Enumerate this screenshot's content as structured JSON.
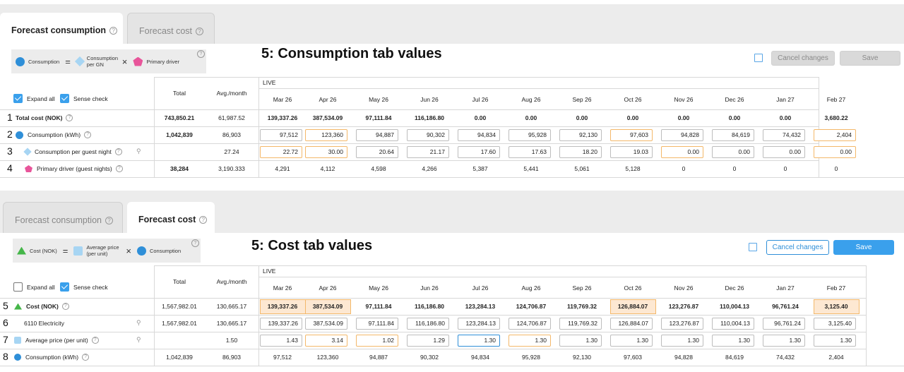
{
  "months": [
    "Mar 26",
    "Apr 26",
    "May 26",
    "Jun 26",
    "Jul 26",
    "Aug 26",
    "Sep 26",
    "Oct 26",
    "Nov 26",
    "Dec 26",
    "Jan 27",
    "Feb 27"
  ],
  "common": {
    "total_label": "Total",
    "avg_label": "Avg./month",
    "live_label": "LIVE",
    "expand_all": "Expand all",
    "sense_check": "Sense check",
    "cancel": "Cancel changes",
    "save": "Save",
    "help": "?"
  },
  "consumption_panel": {
    "tabs": [
      "Forecast consumption",
      "Forecast cost"
    ],
    "heading": "5: Consumption tab values",
    "formula": {
      "a": "Consumption",
      "eq": "=",
      "b": "Consumption per GN",
      "x": "×",
      "c": "Primary driver"
    },
    "rows": [
      {
        "num": "1",
        "label": "Total cost (NOK)",
        "total": "743,850.21",
        "avg": "61,987.52",
        "values": [
          "139,337.26",
          "387,534.09",
          "97,111.84",
          "116,186.80",
          "0.00",
          "0.00",
          "0.00",
          "0.00",
          "0.00",
          "0.00",
          "0.00",
          "3,680.22"
        ]
      },
      {
        "num": "2",
        "label": "Consumption (kWh)",
        "total": "1,042,839",
        "avg": "86,903",
        "values": [
          "97,512",
          "123,360",
          "94,887",
          "90,302",
          "94,834",
          "95,928",
          "92,130",
          "97,603",
          "94,828",
          "84,619",
          "74,432",
          "2,404"
        ]
      },
      {
        "num": "3",
        "label": "Consumption per guest night",
        "total": "",
        "avg": "27.24",
        "values": [
          "22.72",
          "30.00",
          "20.64",
          "21.17",
          "17.60",
          "17.63",
          "18.20",
          "19.03",
          "0.00",
          "0.00",
          "0.00",
          "0.00"
        ]
      },
      {
        "num": "4",
        "label": "Primary driver (guest nights)",
        "total": "38,284",
        "avg": "3,190.333",
        "values": [
          "4,291",
          "4,112",
          "4,598",
          "4,266",
          "5,387",
          "5,441",
          "5,061",
          "5,128",
          "0",
          "0",
          "0",
          "0"
        ]
      }
    ]
  },
  "cost_panel": {
    "tabs": [
      "Forecast consumption",
      "Forecast cost"
    ],
    "heading": "5: Cost tab values",
    "formula": {
      "a": "Cost (NOK)",
      "eq": "=",
      "b": "Average price (per unit)",
      "x": "×",
      "c": "Consumption"
    },
    "rows": [
      {
        "num": "5",
        "label": "Cost (NOK)",
        "total": "1,567,982.01",
        "avg": "130,665.17",
        "values": [
          "139,337.26",
          "387,534.09",
          "97,111.84",
          "116,186.80",
          "123,284.13",
          "124,706.87",
          "119,769.32",
          "126,884.07",
          "123,276.87",
          "110,004.13",
          "96,761.24",
          "3,125.40"
        ]
      },
      {
        "num": "6",
        "label": "6110 Electricity",
        "total": "1,567,982.01",
        "avg": "130,665.17",
        "values": [
          "139,337.26",
          "387,534.09",
          "97,111.84",
          "116,186.80",
          "123,284.13",
          "124,706.87",
          "119,769.32",
          "126,884.07",
          "123,276.87",
          "110,004.13",
          "96,761.24",
          "3,125.40"
        ]
      },
      {
        "num": "7",
        "label": "Average price (per unit)",
        "total": "",
        "avg": "1.50",
        "values": [
          "1.43",
          "3.14",
          "1.02",
          "1.29",
          "1.30",
          "1.30",
          "1.30",
          "1.30",
          "1.30",
          "1.30",
          "1.30",
          "1.30"
        ]
      },
      {
        "num": "8",
        "label": "Consumption (kWh)",
        "total": "1,042,839",
        "avg": "86,903",
        "values": [
          "97,512",
          "123,360",
          "94,887",
          "90,302",
          "94,834",
          "95,928",
          "92,130",
          "97,603",
          "94,828",
          "84,619",
          "74,432",
          "2,404"
        ]
      }
    ]
  },
  "colors": {
    "accent": "#2f8fd8",
    "highlight": "#f3b86a",
    "highlight_fill": "#fde8d2"
  }
}
